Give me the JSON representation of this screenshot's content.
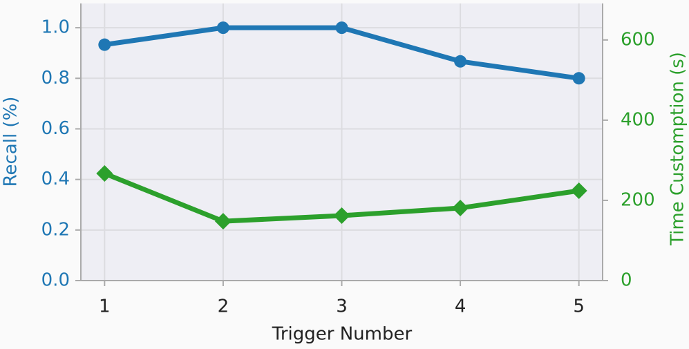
{
  "chart_data": {
    "type": "line",
    "x": [
      1,
      2,
      3,
      4,
      5
    ],
    "xlabel": "Trigger Number",
    "ylabel": "Recall (%)",
    "y2label": "Time Customption (s)",
    "xlim": [
      0.8,
      5.2
    ],
    "xticks": [
      1,
      2,
      3,
      4,
      5
    ],
    "ylim": [
      0,
      1.096
    ],
    "yticks": [
      {
        "value": 0,
        "label": "0.0"
      },
      0.2,
      0.4,
      0.6,
      0.8,
      {
        "value": 1,
        "label": "1.0"
      }
    ],
    "y2lim": [
      0,
      691
    ],
    "y2ticks": [
      0,
      200,
      400,
      600
    ],
    "grid": true,
    "series": [
      {
        "name": "Recall",
        "color": "#1f77b4",
        "marker": "circle",
        "values": [
          0.933,
          1.0,
          1.0,
          0.867,
          0.8
        ]
      },
      {
        "name": "Time",
        "color": "#2ca02c",
        "marker": "diamond",
        "axis": "y2",
        "values": [
          267,
          148,
          162,
          181,
          224
        ]
      }
    ]
  }
}
